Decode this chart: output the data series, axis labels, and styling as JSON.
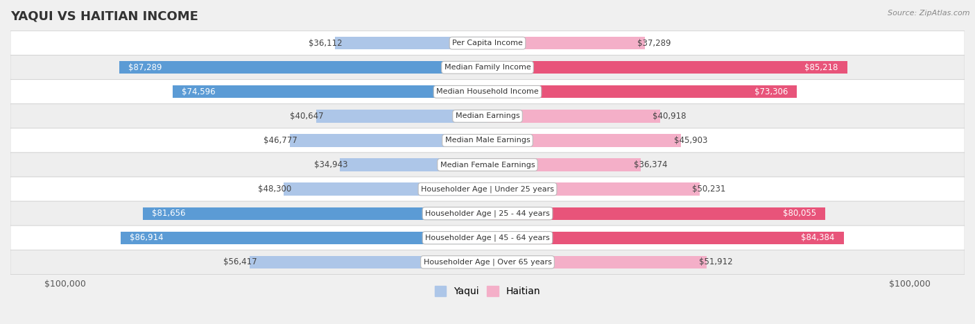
{
  "title": "YAQUI VS HAITIAN INCOME",
  "source": "Source: ZipAtlas.com",
  "categories": [
    "Per Capita Income",
    "Median Family Income",
    "Median Household Income",
    "Median Earnings",
    "Median Male Earnings",
    "Median Female Earnings",
    "Householder Age | Under 25 years",
    "Householder Age | 25 - 44 years",
    "Householder Age | 45 - 64 years",
    "Householder Age | Over 65 years"
  ],
  "yaqui_values": [
    36112,
    87289,
    74596,
    40647,
    46777,
    34943,
    48300,
    81656,
    86914,
    56417
  ],
  "haitian_values": [
    37289,
    85218,
    73306,
    40918,
    45903,
    36374,
    50231,
    80055,
    84384,
    51912
  ],
  "yaqui_labels": [
    "$36,112",
    "$87,289",
    "$74,596",
    "$40,647",
    "$46,777",
    "$34,943",
    "$48,300",
    "$81,656",
    "$86,914",
    "$56,417"
  ],
  "haitian_labels": [
    "$37,289",
    "$85,218",
    "$73,306",
    "$40,918",
    "$45,903",
    "$36,374",
    "$50,231",
    "$80,055",
    "$84,384",
    "$51,912"
  ],
  "max_value": 100000,
  "yaqui_color_light": "#adc6e8",
  "yaqui_color_dark": "#5b9bd5",
  "haitian_color_light": "#f4afc8",
  "haitian_color_dark": "#e8547a",
  "row_colors": [
    "#f7f7f7",
    "#efefef",
    "#f7f7f7",
    "#efefef",
    "#f7f7f7",
    "#efefef",
    "#f7f7f7",
    "#efefef",
    "#f7f7f7",
    "#efefef"
  ],
  "bg_color": "#f0f0f0",
  "bar_height": 0.52,
  "threshold": 60000,
  "legend_yaqui": "Yaqui",
  "legend_haitian": "Haitian",
  "label_font_size": 8.5,
  "cat_font_size": 8.0
}
